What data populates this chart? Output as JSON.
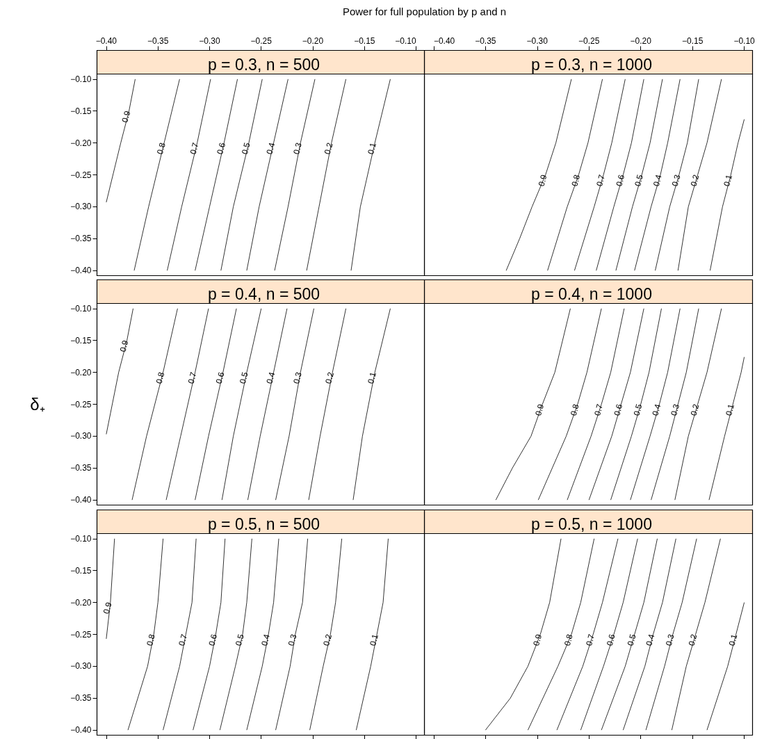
{
  "chart_data": [
    {
      "type": "line",
      "title": "p = 0.3, n = 500",
      "annotations": [
        "Power for full population by p and n"
      ],
      "xlim": [
        -0.409,
        -0.092
      ],
      "ylim": [
        -0.408,
        -0.092
      ],
      "xticks": [
        {
          "value": -0.4,
          "label": "−0.40"
        },
        {
          "value": -0.35,
          "label": "−0.35"
        },
        {
          "value": -0.3,
          "label": "−0.30"
        },
        {
          "value": -0.25,
          "label": "−0.25"
        },
        {
          "value": -0.2,
          "label": "−0.20"
        },
        {
          "value": -0.15,
          "label": "−0.15"
        },
        {
          "value": -0.1,
          "label": "−0.10"
        }
      ],
      "yticks": [
        {
          "value": -0.4,
          "label": "−0.40"
        },
        {
          "value": -0.35,
          "label": "−0.35"
        },
        {
          "value": -0.3,
          "label": "−0.30"
        },
        {
          "value": -0.25,
          "label": "−0.25"
        },
        {
          "value": -0.2,
          "label": "−0.20"
        },
        {
          "value": -0.15,
          "label": "−0.15"
        },
        {
          "value": -0.1,
          "label": "−0.10"
        }
      ],
      "legend": false,
      "marker": "none",
      "series": [
        {
          "name": "0.9",
          "color": "#000000",
          "x": [
            -0.372,
            -0.378,
            -0.386,
            -0.4
          ],
          "values": [
            -0.1,
            -0.15,
            -0.2,
            -0.293
          ]
        },
        {
          "name": "0.8",
          "color": "#000000",
          "x": [
            -0.329,
            -0.344,
            -0.359,
            -0.373
          ],
          "values": [
            -0.1,
            -0.2,
            -0.3,
            -0.4
          ]
        },
        {
          "name": "0.7",
          "color": "#000000",
          "x": [
            -0.299,
            -0.312,
            -0.327,
            -0.341
          ],
          "values": [
            -0.1,
            -0.2,
            -0.3,
            -0.4
          ]
        },
        {
          "name": "0.6",
          "color": "#000000",
          "x": [
            -0.273,
            -0.286,
            -0.3,
            -0.314
          ],
          "values": [
            -0.1,
            -0.2,
            -0.3,
            -0.4
          ]
        },
        {
          "name": "0.5",
          "color": "#000000",
          "x": [
            -0.249,
            -0.262,
            -0.277,
            -0.289
          ],
          "values": [
            -0.1,
            -0.2,
            -0.3,
            -0.4
          ]
        },
        {
          "name": "0.4",
          "color": "#000000",
          "x": [
            -0.224,
            -0.238,
            -0.252,
            -0.264
          ],
          "values": [
            -0.1,
            -0.2,
            -0.3,
            -0.4
          ]
        },
        {
          "name": "0.3",
          "color": "#000000",
          "x": [
            -0.198,
            -0.212,
            -0.224,
            -0.237
          ],
          "values": [
            -0.1,
            -0.2,
            -0.3,
            -0.4
          ]
        },
        {
          "name": "0.2",
          "color": "#000000",
          "x": [
            -0.168,
            -0.182,
            -0.194,
            -0.206
          ],
          "values": [
            -0.1,
            -0.2,
            -0.3,
            -0.4
          ]
        },
        {
          "name": "0.1",
          "color": "#000000",
          "x": [
            -0.125,
            -0.14,
            -0.154,
            -0.163
          ],
          "values": [
            -0.1,
            -0.2,
            -0.3,
            -0.4
          ]
        }
      ]
    },
    {
      "type": "line",
      "title": "p = 0.3, n = 1000",
      "tick_labels": "x",
      "xlim": [
        -0.409,
        -0.092
      ],
      "ylim": [
        -0.408,
        -0.092
      ],
      "xticks": [
        {
          "value": -0.4,
          "label": "−0.40"
        },
        {
          "value": -0.35,
          "label": "−0.35"
        },
        {
          "value": -0.3,
          "label": "−0.30"
        },
        {
          "value": -0.25,
          "label": "−0.25"
        },
        {
          "value": -0.2,
          "label": "−0.20"
        },
        {
          "value": -0.15,
          "label": "−0.15"
        },
        {
          "value": -0.1,
          "label": "−0.10"
        }
      ],
      "legend": false,
      "marker": "none",
      "series": [
        {
          "name": "0.9",
          "color": "#000000",
          "x": [
            -0.267,
            -0.282,
            -0.292,
            -0.305,
            -0.317,
            -0.33
          ],
          "values": [
            -0.1,
            -0.2,
            -0.25,
            -0.3,
            -0.35,
            -0.4
          ]
        },
        {
          "name": "0.8",
          "color": "#000000",
          "x": [
            -0.237,
            -0.251,
            -0.26,
            -0.271,
            -0.29
          ],
          "values": [
            -0.1,
            -0.2,
            -0.25,
            -0.3,
            -0.4
          ]
        },
        {
          "name": "0.7",
          "color": "#000000",
          "x": [
            -0.215,
            -0.228,
            -0.236,
            -0.245,
            -0.264
          ],
          "values": [
            -0.1,
            -0.2,
            -0.25,
            -0.3,
            -0.4
          ]
        },
        {
          "name": "0.6",
          "color": "#000000",
          "x": [
            -0.197,
            -0.209,
            -0.217,
            -0.226,
            -0.243
          ],
          "values": [
            -0.1,
            -0.2,
            -0.25,
            -0.3,
            -0.4
          ]
        },
        {
          "name": "0.5",
          "color": "#000000",
          "x": [
            -0.179,
            -0.191,
            -0.199,
            -0.208,
            -0.224
          ],
          "values": [
            -0.1,
            -0.2,
            -0.25,
            -0.3,
            -0.4
          ]
        },
        {
          "name": "0.4",
          "color": "#000000",
          "x": [
            -0.162,
            -0.174,
            -0.181,
            -0.19,
            -0.206
          ],
          "values": [
            -0.1,
            -0.2,
            -0.25,
            -0.3,
            -0.4
          ]
        },
        {
          "name": "0.3",
          "color": "#000000",
          "x": [
            -0.144,
            -0.155,
            -0.163,
            -0.172,
            -0.186
          ],
          "values": [
            -0.1,
            -0.2,
            -0.25,
            -0.3,
            -0.4
          ]
        },
        {
          "name": "0.2",
          "color": "#000000",
          "x": [
            -0.122,
            -0.136,
            -0.145,
            -0.154,
            -0.164
          ],
          "values": [
            -0.1,
            -0.2,
            -0.25,
            -0.3,
            -0.4
          ]
        },
        {
          "name": "0.1",
          "color": "#000000",
          "x": [
            -0.1,
            -0.106,
            -0.113,
            -0.121,
            -0.133
          ],
          "values": [
            -0.163,
            -0.2,
            -0.25,
            -0.3,
            -0.4
          ]
        }
      ]
    },
    {
      "type": "line",
      "title": "p = 0.4, n = 500",
      "ylabel": "δ₊",
      "tick_labels": "y",
      "xlim": [
        -0.409,
        -0.092
      ],
      "ylim": [
        -0.408,
        -0.092
      ],
      "yticks": [
        {
          "value": -0.4,
          "label": "−0.40"
        },
        {
          "value": -0.35,
          "label": "−0.35"
        },
        {
          "value": -0.3,
          "label": "−0.30"
        },
        {
          "value": -0.25,
          "label": "−0.25"
        },
        {
          "value": -0.2,
          "label": "−0.20"
        },
        {
          "value": -0.15,
          "label": "−0.15"
        },
        {
          "value": -0.1,
          "label": "−0.10"
        }
      ],
      "legend": false,
      "marker": "none",
      "series": [
        {
          "name": "0.9",
          "color": "#000000",
          "x": [
            -0.374,
            -0.38,
            -0.388,
            -0.4
          ],
          "values": [
            -0.1,
            -0.15,
            -0.2,
            -0.297
          ]
        },
        {
          "name": "0.8",
          "color": "#000000",
          "x": [
            -0.331,
            -0.345,
            -0.361,
            -0.375
          ],
          "values": [
            -0.1,
            -0.2,
            -0.3,
            -0.4
          ]
        },
        {
          "name": "0.7",
          "color": "#000000",
          "x": [
            -0.301,
            -0.314,
            -0.328,
            -0.342
          ],
          "values": [
            -0.1,
            -0.2,
            -0.3,
            -0.4
          ]
        },
        {
          "name": "0.6",
          "color": "#000000",
          "x": [
            -0.274,
            -0.287,
            -0.301,
            -0.314
          ],
          "values": [
            -0.1,
            -0.2,
            -0.3,
            -0.4
          ]
        },
        {
          "name": "0.5",
          "color": "#000000",
          "x": [
            -0.25,
            -0.264,
            -0.277,
            -0.288
          ],
          "values": [
            -0.1,
            -0.2,
            -0.3,
            -0.4
          ]
        },
        {
          "name": "0.4",
          "color": "#000000",
          "x": [
            -0.225,
            -0.238,
            -0.251,
            -0.263
          ],
          "values": [
            -0.1,
            -0.2,
            -0.3,
            -0.4
          ]
        },
        {
          "name": "0.3",
          "color": "#000000",
          "x": [
            -0.199,
            -0.212,
            -0.223,
            -0.236
          ],
          "values": [
            -0.1,
            -0.2,
            -0.3,
            -0.4
          ]
        },
        {
          "name": "0.2",
          "color": "#000000",
          "x": [
            -0.168,
            -0.181,
            -0.193,
            -0.204
          ],
          "values": [
            -0.1,
            -0.2,
            -0.3,
            -0.4
          ]
        },
        {
          "name": "0.1",
          "color": "#000000",
          "x": [
            -0.125,
            -0.14,
            -0.152,
            -0.161
          ],
          "values": [
            -0.1,
            -0.2,
            -0.3,
            -0.4
          ]
        }
      ]
    },
    {
      "type": "line",
      "title": "p = 0.4, n = 1000",
      "tick_labels": false,
      "xlim": [
        -0.409,
        -0.092
      ],
      "ylim": [
        -0.408,
        -0.092
      ],
      "legend": false,
      "marker": "none",
      "series": [
        {
          "name": "0.9",
          "color": "#000000",
          "x": [
            -0.268,
            -0.283,
            -0.295,
            -0.306,
            -0.324,
            -0.34
          ],
          "values": [
            -0.1,
            -0.2,
            -0.25,
            -0.3,
            -0.35,
            -0.4
          ]
        },
        {
          "name": "0.8",
          "color": "#000000",
          "x": [
            -0.238,
            -0.252,
            -0.261,
            -0.272,
            -0.299
          ],
          "values": [
            -0.1,
            -0.2,
            -0.25,
            -0.3,
            -0.4
          ]
        },
        {
          "name": "0.7",
          "color": "#000000",
          "x": [
            -0.216,
            -0.229,
            -0.238,
            -0.248,
            -0.271
          ],
          "values": [
            -0.1,
            -0.2,
            -0.25,
            -0.3,
            -0.4
          ]
        },
        {
          "name": "0.6",
          "color": "#000000",
          "x": [
            -0.197,
            -0.21,
            -0.219,
            -0.228,
            -0.25
          ],
          "values": [
            -0.1,
            -0.2,
            -0.25,
            -0.3,
            -0.4
          ]
        },
        {
          "name": "0.5",
          "color": "#000000",
          "x": [
            -0.18,
            -0.192,
            -0.2,
            -0.209,
            -0.229
          ],
          "values": [
            -0.1,
            -0.2,
            -0.25,
            -0.3,
            -0.4
          ]
        },
        {
          "name": "0.4",
          "color": "#000000",
          "x": [
            -0.162,
            -0.174,
            -0.182,
            -0.191,
            -0.21
          ],
          "values": [
            -0.1,
            -0.2,
            -0.25,
            -0.3,
            -0.4
          ]
        },
        {
          "name": "0.3",
          "color": "#000000",
          "x": [
            -0.144,
            -0.156,
            -0.164,
            -0.172,
            -0.19
          ],
          "values": [
            -0.1,
            -0.2,
            -0.25,
            -0.3,
            -0.4
          ]
        },
        {
          "name": "0.2",
          "color": "#000000",
          "x": [
            -0.122,
            -0.136,
            -0.145,
            -0.154,
            -0.167
          ],
          "values": [
            -0.1,
            -0.2,
            -0.25,
            -0.3,
            -0.4
          ]
        },
        {
          "name": "0.1",
          "color": "#000000",
          "x": [
            -0.1,
            -0.103,
            -0.111,
            -0.119,
            -0.134
          ],
          "values": [
            -0.176,
            -0.2,
            -0.25,
            -0.3,
            -0.4
          ]
        }
      ]
    },
    {
      "type": "line",
      "title": "p = 0.5, n = 500",
      "tick_labels": "y",
      "xlim": [
        -0.409,
        -0.092
      ],
      "ylim": [
        -0.408,
        -0.092
      ],
      "xticks": [
        {
          "value": -0.4,
          "label": null
        },
        {
          "value": -0.35,
          "label": null
        },
        {
          "value": -0.3,
          "label": null
        },
        {
          "value": -0.25,
          "label": null
        },
        {
          "value": -0.2,
          "label": null
        },
        {
          "value": -0.15,
          "label": null
        },
        {
          "value": -0.1,
          "label": null
        }
      ],
      "yticks": [
        {
          "value": -0.4,
          "label": "−0.40"
        },
        {
          "value": -0.35,
          "label": "−0.35"
        },
        {
          "value": -0.3,
          "label": "−0.30"
        },
        {
          "value": -0.25,
          "label": "−0.25"
        },
        {
          "value": -0.2,
          "label": "−0.20"
        },
        {
          "value": -0.15,
          "label": "−0.15"
        },
        {
          "value": -0.1,
          "label": "−0.10"
        }
      ],
      "legend": false,
      "marker": "none",
      "series": [
        {
          "name": "0.9",
          "color": "#000000",
          "x": [
            -0.392,
            -0.396,
            -0.4
          ],
          "values": [
            -0.1,
            -0.2,
            -0.257
          ]
        },
        {
          "name": "0.8",
          "color": "#000000",
          "x": [
            -0.345,
            -0.35,
            -0.354,
            -0.36,
            -0.379
          ],
          "values": [
            -0.1,
            -0.2,
            -0.25,
            -0.3,
            -0.4
          ]
        },
        {
          "name": "0.7",
          "color": "#000000",
          "x": [
            -0.313,
            -0.317,
            -0.323,
            -0.329,
            -0.345
          ],
          "values": [
            -0.1,
            -0.2,
            -0.25,
            -0.3,
            -0.4
          ]
        },
        {
          "name": "0.6",
          "color": "#000000",
          "x": [
            -0.285,
            -0.289,
            -0.294,
            -0.3,
            -0.316
          ],
          "values": [
            -0.1,
            -0.2,
            -0.25,
            -0.3,
            -0.4
          ]
        },
        {
          "name": "0.5",
          "color": "#000000",
          "x": [
            -0.259,
            -0.264,
            -0.268,
            -0.275,
            -0.29
          ],
          "values": [
            -0.1,
            -0.2,
            -0.25,
            -0.3,
            -0.4
          ]
        },
        {
          "name": "0.4",
          "color": "#000000",
          "x": [
            -0.233,
            -0.238,
            -0.243,
            -0.249,
            -0.264
          ],
          "values": [
            -0.1,
            -0.2,
            -0.25,
            -0.3,
            -0.4
          ]
        },
        {
          "name": "0.3",
          "color": "#000000",
          "x": [
            -0.205,
            -0.21,
            -0.217,
            -0.222,
            -0.236
          ],
          "values": [
            -0.1,
            -0.2,
            -0.25,
            -0.3,
            -0.4
          ]
        },
        {
          "name": "0.2",
          "color": "#000000",
          "x": [
            -0.172,
            -0.178,
            -0.183,
            -0.19,
            -0.203
          ],
          "values": [
            -0.1,
            -0.2,
            -0.25,
            -0.3,
            -0.4
          ]
        },
        {
          "name": "0.1",
          "color": "#000000",
          "x": [
            -0.127,
            -0.132,
            -0.138,
            -0.144,
            -0.158
          ],
          "values": [
            -0.1,
            -0.2,
            -0.25,
            -0.3,
            -0.4
          ]
        }
      ]
    },
    {
      "type": "line",
      "title": "p = 0.5, n = 1000",
      "tick_labels": false,
      "xlim": [
        -0.409,
        -0.092
      ],
      "ylim": [
        -0.408,
        -0.092
      ],
      "xticks": [
        {
          "value": -0.4,
          "label": null
        },
        {
          "value": -0.35,
          "label": null
        },
        {
          "value": -0.3,
          "label": null
        },
        {
          "value": -0.25,
          "label": null
        },
        {
          "value": -0.2,
          "label": null
        },
        {
          "value": -0.15,
          "label": null
        },
        {
          "value": -0.1,
          "label": null
        }
      ],
      "legend": false,
      "marker": "none",
      "series": [
        {
          "name": "0.9",
          "color": "#000000",
          "x": [
            -0.277,
            -0.288,
            -0.297,
            -0.309,
            -0.326,
            -0.35
          ],
          "values": [
            -0.1,
            -0.2,
            -0.25,
            -0.3,
            -0.35,
            -0.4
          ]
        },
        {
          "name": "0.8",
          "color": "#000000",
          "x": [
            -0.245,
            -0.258,
            -0.267,
            -0.28,
            -0.309
          ],
          "values": [
            -0.1,
            -0.2,
            -0.25,
            -0.3,
            -0.4
          ]
        },
        {
          "name": "0.7",
          "color": "#000000",
          "x": [
            -0.222,
            -0.237,
            -0.246,
            -0.256,
            -0.281
          ],
          "values": [
            -0.1,
            -0.2,
            -0.25,
            -0.3,
            -0.4
          ]
        },
        {
          "name": "0.6",
          "color": "#000000",
          "x": [
            -0.203,
            -0.217,
            -0.226,
            -0.236,
            -0.258
          ],
          "values": [
            -0.1,
            -0.2,
            -0.25,
            -0.3,
            -0.4
          ]
        },
        {
          "name": "0.5",
          "color": "#000000",
          "x": [
            -0.184,
            -0.197,
            -0.206,
            -0.215,
            -0.238
          ],
          "values": [
            -0.1,
            -0.2,
            -0.25,
            -0.3,
            -0.4
          ]
        },
        {
          "name": "0.4",
          "color": "#000000",
          "x": [
            -0.166,
            -0.179,
            -0.188,
            -0.196,
            -0.217
          ],
          "values": [
            -0.1,
            -0.2,
            -0.25,
            -0.3,
            -0.4
          ]
        },
        {
          "name": "0.3",
          "color": "#000000",
          "x": [
            -0.146,
            -0.16,
            -0.169,
            -0.177,
            -0.195
          ],
          "values": [
            -0.1,
            -0.2,
            -0.25,
            -0.3,
            -0.4
          ]
        },
        {
          "name": "0.2",
          "color": "#000000",
          "x": [
            -0.123,
            -0.138,
            -0.147,
            -0.156,
            -0.17
          ],
          "values": [
            -0.1,
            -0.2,
            -0.25,
            -0.3,
            -0.4
          ]
        },
        {
          "name": "0.1",
          "color": "#000000",
          "x": [
            -0.1,
            -0.108,
            -0.116,
            -0.136
          ],
          "values": [
            -0.2,
            -0.25,
            -0.3,
            -0.4
          ]
        }
      ]
    }
  ]
}
